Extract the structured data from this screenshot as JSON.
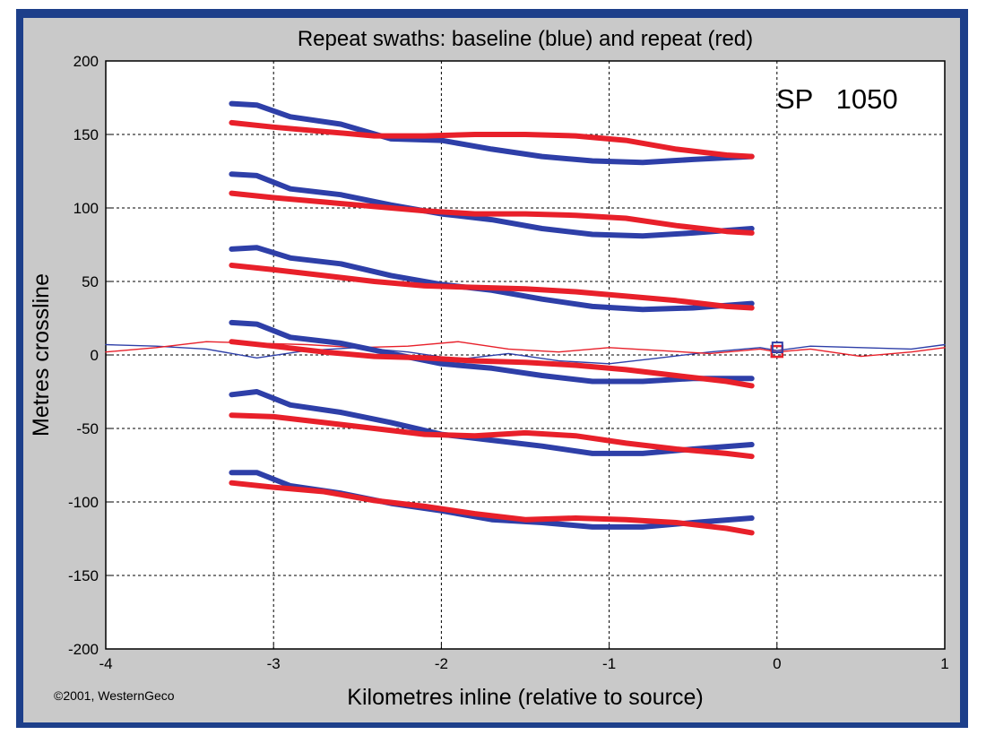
{
  "chart_data": {
    "type": "line",
    "title": "Repeat swaths: baseline (blue) and repeat (red)",
    "xlabel": "Kilometres inline (relative to source)",
    "ylabel": "Metres crossline",
    "xlim": [
      -4,
      1
    ],
    "ylim": [
      -200,
      200
    ],
    "xticks": [
      -4,
      -3,
      -2,
      -1,
      0,
      1
    ],
    "yticks": [
      200,
      150,
      100,
      50,
      0,
      -50,
      -100,
      -150,
      -200
    ],
    "xtick_labels": [
      "-4",
      "-3",
      "-2",
      "-1",
      "0",
      "1"
    ],
    "ytick_labels": [
      "200",
      "150",
      "100",
      "50",
      "0",
      "-50",
      "-100",
      "-150",
      "-200"
    ],
    "grid": true,
    "annotation": "SP   1050",
    "copyright": "©2001, WesternGeco",
    "colors": {
      "baseline": "#2e3fa8",
      "repeat": "#e8202a"
    },
    "marker_point": {
      "x": 0,
      "y": 3
    },
    "series": [
      {
        "color": "baseline",
        "width": "thick",
        "x": [
          -3.25,
          -3.1,
          -2.9,
          -2.6,
          -2.3,
          -2.0,
          -1.7,
          -1.4,
          -1.1,
          -0.8,
          -0.5,
          -0.15
        ],
        "y": [
          171,
          170,
          162,
          157,
          147,
          146,
          140,
          135,
          132,
          131,
          133,
          135
        ]
      },
      {
        "color": "baseline",
        "width": "thick",
        "x": [
          -3.25,
          -3.1,
          -2.9,
          -2.6,
          -2.3,
          -2.0,
          -1.7,
          -1.4,
          -1.1,
          -0.8,
          -0.5,
          -0.15
        ],
        "y": [
          123,
          122,
          113,
          109,
          102,
          96,
          92,
          86,
          82,
          81,
          83,
          86
        ]
      },
      {
        "color": "baseline",
        "width": "thick",
        "x": [
          -3.25,
          -3.1,
          -2.9,
          -2.6,
          -2.3,
          -2.0,
          -1.7,
          -1.4,
          -1.1,
          -0.8,
          -0.5,
          -0.15
        ],
        "y": [
          72,
          73,
          66,
          62,
          54,
          48,
          44,
          38,
          33,
          31,
          32,
          35
        ]
      },
      {
        "color": "baseline",
        "width": "thick",
        "x": [
          -3.25,
          -3.1,
          -2.9,
          -2.6,
          -2.3,
          -2.0,
          -1.7,
          -1.4,
          -1.1,
          -0.8,
          -0.5,
          -0.15
        ],
        "y": [
          22,
          21,
          12,
          8,
          1,
          -6,
          -9,
          -14,
          -18,
          -18,
          -16,
          -16
        ]
      },
      {
        "color": "baseline",
        "width": "thick",
        "x": [
          -3.25,
          -3.1,
          -2.9,
          -2.6,
          -2.3,
          -2.0,
          -1.7,
          -1.4,
          -1.1,
          -0.8,
          -0.5,
          -0.15
        ],
        "y": [
          -27,
          -25,
          -34,
          -39,
          -46,
          -54,
          -58,
          -62,
          -67,
          -67,
          -64,
          -61
        ]
      },
      {
        "color": "baseline",
        "width": "thick",
        "x": [
          -3.25,
          -3.1,
          -2.9,
          -2.6,
          -2.3,
          -2.0,
          -1.7,
          -1.4,
          -1.1,
          -0.8,
          -0.5,
          -0.15
        ],
        "y": [
          -80,
          -80,
          -89,
          -94,
          -101,
          -106,
          -112,
          -114,
          -117,
          -117,
          -114,
          -111
        ]
      },
      {
        "color": "repeat",
        "width": "thick",
        "x": [
          -3.25,
          -3.0,
          -2.7,
          -2.4,
          -2.1,
          -1.8,
          -1.5,
          -1.2,
          -0.9,
          -0.6,
          -0.3,
          -0.15
        ],
        "y": [
          158,
          155,
          152,
          149,
          149,
          150,
          150,
          149,
          146,
          140,
          136,
          135
        ]
      },
      {
        "color": "repeat",
        "width": "thick",
        "x": [
          -3.25,
          -3.0,
          -2.7,
          -2.4,
          -2.1,
          -1.8,
          -1.5,
          -1.2,
          -0.9,
          -0.6,
          -0.3,
          -0.15
        ],
        "y": [
          110,
          107,
          104,
          101,
          98,
          96,
          96,
          95,
          93,
          88,
          84,
          83
        ]
      },
      {
        "color": "repeat",
        "width": "thick",
        "x": [
          -3.25,
          -3.0,
          -2.7,
          -2.4,
          -2.1,
          -1.8,
          -1.5,
          -1.2,
          -0.9,
          -0.6,
          -0.3,
          -0.15
        ],
        "y": [
          61,
          58,
          54,
          50,
          47,
          46,
          45,
          43,
          40,
          37,
          33,
          32
        ]
      },
      {
        "color": "repeat",
        "width": "thick",
        "x": [
          -3.25,
          -3.0,
          -2.7,
          -2.4,
          -2.1,
          -1.8,
          -1.5,
          -1.2,
          -0.9,
          -0.6,
          -0.3,
          -0.15
        ],
        "y": [
          9,
          6,
          2,
          -1,
          -2,
          -4,
          -5,
          -7,
          -10,
          -14,
          -18,
          -21
        ]
      },
      {
        "color": "repeat",
        "width": "thick",
        "x": [
          -3.25,
          -3.0,
          -2.7,
          -2.4,
          -2.1,
          -1.8,
          -1.5,
          -1.2,
          -0.9,
          -0.6,
          -0.3,
          -0.15
        ],
        "y": [
          -41,
          -42,
          -46,
          -50,
          -54,
          -55,
          -53,
          -55,
          -60,
          -64,
          -67,
          -69
        ]
      },
      {
        "color": "repeat",
        "width": "thick",
        "x": [
          -3.25,
          -3.0,
          -2.7,
          -2.4,
          -2.1,
          -1.8,
          -1.5,
          -1.2,
          -0.9,
          -0.6,
          -0.3,
          -0.15
        ],
        "y": [
          -87,
          -90,
          -93,
          -99,
          -103,
          -108,
          -112,
          -111,
          -112,
          -114,
          -118,
          -121
        ]
      },
      {
        "color": "baseline",
        "width": "thin",
        "x": [
          -4.0,
          -3.7,
          -3.4,
          -3.1,
          -2.8,
          -2.5,
          -2.2,
          -1.9,
          -1.6,
          -1.3,
          -1.0,
          -0.7,
          -0.4,
          -0.1,
          0.0,
          0.2,
          0.5,
          0.8,
          1.0
        ],
        "y": [
          7,
          6,
          4,
          -2,
          3,
          5,
          2,
          -3,
          1,
          -4,
          -6,
          -2,
          2,
          5,
          3,
          6,
          5,
          4,
          7
        ]
      },
      {
        "color": "repeat",
        "width": "thin",
        "x": [
          -4.0,
          -3.7,
          -3.4,
          -3.1,
          -2.8,
          -2.5,
          -2.2,
          -1.9,
          -1.6,
          -1.3,
          -1.0,
          -0.7,
          -0.4,
          -0.1,
          0.0,
          0.2,
          0.5,
          0.8,
          1.0
        ],
        "y": [
          2,
          5,
          9,
          8,
          7,
          5,
          6,
          9,
          4,
          2,
          5,
          3,
          1,
          4,
          2,
          4,
          -1,
          2,
          5
        ]
      }
    ]
  }
}
